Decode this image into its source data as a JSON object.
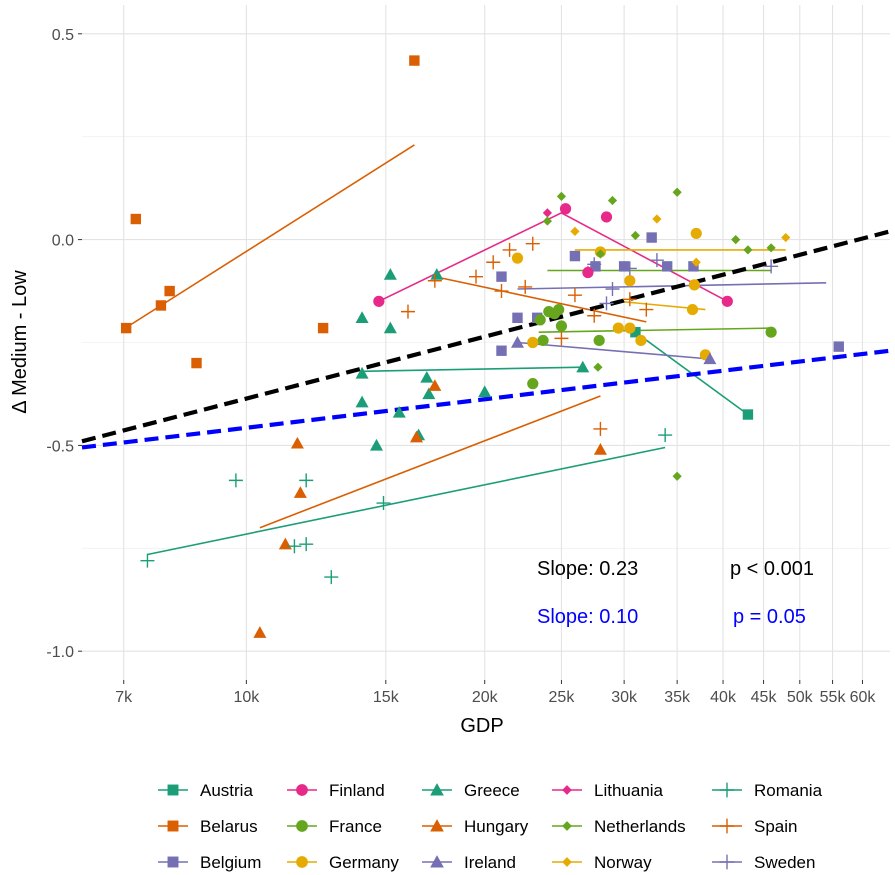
{
  "chart_data": {
    "type": "scatter",
    "xlabel": "GDP",
    "ylabel": "Δ Medium - Low",
    "xscale": "log",
    "xlim": [
      6200,
      65000
    ],
    "ylim": [
      -1.07,
      0.57
    ],
    "x_ticks": [
      {
        "value": 7000,
        "label": "7k"
      },
      {
        "value": 10000,
        "label": "10k"
      },
      {
        "value": 15000,
        "label": "15k"
      },
      {
        "value": 20000,
        "label": "20k"
      },
      {
        "value": 25000,
        "label": "25k"
      },
      {
        "value": 30000,
        "label": "30k"
      },
      {
        "value": 35000,
        "label": "35k"
      },
      {
        "value": 40000,
        "label": "40k"
      },
      {
        "value": 45000,
        "label": "45k"
      },
      {
        "value": 50000,
        "label": "50k"
      },
      {
        "value": 55000,
        "label": "55k"
      },
      {
        "value": 60000,
        "label": "60k"
      }
    ],
    "y_ticks": [
      {
        "value": 0.5,
        "label": "0.5"
      },
      {
        "value": 0.0,
        "label": "0.0"
      },
      {
        "value": -0.5,
        "label": "-0.5"
      },
      {
        "value": -1.0,
        "label": "-1.0"
      }
    ],
    "grid": true,
    "legend_position": "bottom",
    "series": [
      {
        "name": "Austria",
        "color": "#1b9e77",
        "shape": "square",
        "points": [
          [
            31000,
            -0.225
          ],
          [
            43000,
            -0.425
          ]
        ],
        "trend": [
          [
            31000,
            -0.225
          ],
          [
            43000,
            -0.425
          ]
        ]
      },
      {
        "name": "Belarus",
        "color": "#d95f02",
        "shape": "square",
        "points": [
          [
            16300,
            0.435
          ],
          [
            7250,
            0.05
          ],
          [
            7050,
            -0.215
          ],
          [
            7800,
            -0.16
          ],
          [
            8000,
            -0.125
          ],
          [
            12500,
            -0.215
          ],
          [
            8650,
            -0.3
          ]
        ],
        "trend": [
          [
            7100,
            -0.21
          ],
          [
            16300,
            0.23
          ]
        ]
      },
      {
        "name": "Belgium",
        "color": "#7570b3",
        "shape": "square",
        "points": [
          [
            32500,
            0.005
          ],
          [
            26000,
            -0.04
          ],
          [
            27600,
            -0.065
          ],
          [
            30000,
            -0.065
          ],
          [
            34000,
            -0.065
          ],
          [
            36700,
            -0.065
          ],
          [
            21000,
            -0.09
          ],
          [
            22000,
            -0.19
          ],
          [
            23300,
            -0.19
          ],
          [
            21000,
            -0.27
          ],
          [
            56000,
            -0.26
          ]
        ],
        "trend": null
      },
      {
        "name": "Finland",
        "color": "#e7298a",
        "shape": "circle",
        "points": [
          [
            25300,
            0.075
          ],
          [
            28500,
            0.055
          ],
          [
            27000,
            -0.08
          ],
          [
            40500,
            -0.15
          ],
          [
            14700,
            -0.15
          ]
        ],
        "trend": [
          [
            14700,
            -0.15
          ],
          [
            25000,
            0.065
          ],
          [
            40500,
            -0.15
          ]
        ]
      },
      {
        "name": "France",
        "color": "#66a61e",
        "shape": "circle",
        "points": [
          [
            24800,
            -0.17
          ],
          [
            24500,
            -0.18
          ],
          [
            24100,
            -0.175
          ],
          [
            25000,
            -0.21
          ],
          [
            23500,
            -0.195
          ],
          [
            23700,
            -0.245
          ],
          [
            27900,
            -0.245
          ],
          [
            23000,
            -0.35
          ],
          [
            46000,
            -0.225
          ]
        ],
        "trend": [
          [
            23400,
            -0.225
          ],
          [
            46000,
            -0.215
          ]
        ]
      },
      {
        "name": "Germany",
        "color": "#e6ab02",
        "shape": "circle",
        "points": [
          [
            22000,
            -0.045
          ],
          [
            28000,
            -0.03
          ],
          [
            37000,
            0.015
          ],
          [
            29500,
            -0.215
          ],
          [
            30500,
            -0.215
          ],
          [
            31500,
            -0.245
          ],
          [
            36600,
            -0.17
          ],
          [
            36800,
            -0.11
          ],
          [
            30500,
            -0.1
          ],
          [
            38000,
            -0.28
          ],
          [
            23000,
            -0.25
          ]
        ],
        "trend": [
          [
            29500,
            -0.15
          ],
          [
            38000,
            -0.17
          ]
        ]
      },
      {
        "name": "Greece",
        "color": "#1b9e77",
        "shape": "triangle",
        "points": [
          [
            15200,
            -0.085
          ],
          [
            17400,
            -0.085
          ],
          [
            14000,
            -0.19
          ],
          [
            15200,
            -0.215
          ],
          [
            14000,
            -0.325
          ],
          [
            16900,
            -0.335
          ],
          [
            17000,
            -0.375
          ],
          [
            20000,
            -0.37
          ],
          [
            26600,
            -0.31
          ],
          [
            14000,
            -0.395
          ],
          [
            15600,
            -0.42
          ],
          [
            16500,
            -0.475
          ],
          [
            14600,
            -0.5
          ]
        ],
        "trend": [
          [
            14000,
            -0.32
          ],
          [
            26600,
            -0.31
          ]
        ]
      },
      {
        "name": "Hungary",
        "color": "#d95f02",
        "shape": "triangle",
        "points": [
          [
            17300,
            -0.355
          ],
          [
            16400,
            -0.48
          ],
          [
            11600,
            -0.495
          ],
          [
            11700,
            -0.615
          ],
          [
            28000,
            -0.51
          ],
          [
            11200,
            -0.74
          ],
          [
            10400,
            -0.955
          ]
        ],
        "trend": [
          [
            10400,
            -0.7
          ],
          [
            28000,
            -0.38
          ]
        ]
      },
      {
        "name": "Ireland",
        "color": "#7570b3",
        "shape": "triangle",
        "points": [
          [
            22000,
            -0.25
          ],
          [
            38500,
            -0.29
          ]
        ],
        "trend": [
          [
            22000,
            -0.25
          ],
          [
            38500,
            -0.29
          ]
        ]
      },
      {
        "name": "Lithuania",
        "color": "#e7298a",
        "shape": "diamond",
        "points": [
          [
            24000,
            0.065
          ],
          [
            27000,
            -0.075
          ]
        ],
        "trend": null
      },
      {
        "name": "Netherlands",
        "color": "#66a61e",
        "shape": "diamond",
        "points": [
          [
            25000,
            0.105
          ],
          [
            35000,
            0.115
          ],
          [
            29000,
            0.095
          ],
          [
            24000,
            0.045
          ],
          [
            31000,
            0.01
          ],
          [
            41500,
            0.0
          ],
          [
            46000,
            -0.02
          ],
          [
            43000,
            -0.025
          ],
          [
            28000,
            -0.035
          ],
          [
            27800,
            -0.31
          ],
          [
            35000,
            -0.575
          ]
        ],
        "trend": [
          [
            24000,
            -0.075
          ],
          [
            46000,
            -0.075
          ]
        ]
      },
      {
        "name": "Norway",
        "color": "#e6ab02",
        "shape": "diamond",
        "points": [
          [
            33000,
            0.05
          ],
          [
            48000,
            0.005
          ],
          [
            26000,
            0.02
          ],
          [
            37000,
            -0.055
          ]
        ],
        "trend": [
          [
            26000,
            -0.025
          ],
          [
            48000,
            -0.025
          ]
        ]
      },
      {
        "name": "Romania",
        "color": "#1b9e77",
        "shape": "plus",
        "points": [
          [
            33800,
            -0.475
          ],
          [
            9700,
            -0.585
          ],
          [
            11900,
            -0.585
          ],
          [
            14900,
            -0.64
          ],
          [
            11900,
            -0.74
          ],
          [
            11500,
            -0.745
          ],
          [
            7500,
            -0.78
          ],
          [
            12800,
            -0.82
          ]
        ],
        "trend": [
          [
            7500,
            -0.765
          ],
          [
            33800,
            -0.505
          ]
        ]
      },
      {
        "name": "Spain",
        "color": "#d95f02",
        "shape": "plus",
        "points": [
          [
            23000,
            -0.01
          ],
          [
            21500,
            -0.025
          ],
          [
            20500,
            -0.055
          ],
          [
            19500,
            -0.09
          ],
          [
            17300,
            -0.1
          ],
          [
            21000,
            -0.125
          ],
          [
            22500,
            -0.115
          ],
          [
            26000,
            -0.135
          ],
          [
            25000,
            -0.24
          ],
          [
            16000,
            -0.175
          ],
          [
            30500,
            -0.145
          ],
          [
            32000,
            -0.17
          ],
          [
            27500,
            -0.185
          ],
          [
            28000,
            -0.46
          ]
        ],
        "trend": [
          [
            17300,
            -0.09
          ],
          [
            32000,
            -0.2
          ]
        ]
      },
      {
        "name": "Sweden",
        "color": "#7570b3",
        "shape": "plus",
        "points": [
          [
            27500,
            -0.06
          ],
          [
            30500,
            -0.07
          ],
          [
            29000,
            -0.12
          ],
          [
            28500,
            -0.155
          ],
          [
            33000,
            -0.05
          ],
          [
            46000,
            -0.065
          ]
        ],
        "trend": [
          [
            22000,
            -0.12
          ],
          [
            54000,
            -0.105
          ]
        ]
      }
    ],
    "overall_fits": [
      {
        "color": "#000000",
        "slope": 0.23,
        "p": "< 0.001",
        "line": [
          [
            6200,
            -0.49
          ],
          [
            65000,
            0.02
          ]
        ]
      },
      {
        "color": "#0000ff",
        "slope": 0.1,
        "p": "=  0.05",
        "line": [
          [
            6200,
            -0.505
          ],
          [
            65000,
            -0.27
          ]
        ]
      }
    ],
    "annotations": [
      {
        "slope_text": "Slope: 0.23",
        "p_text": "p < 0.001",
        "color": "#000000"
      },
      {
        "slope_text": "Slope: 0.10",
        "p_text": "p =  0.05",
        "color": "#0000ff"
      }
    ]
  }
}
